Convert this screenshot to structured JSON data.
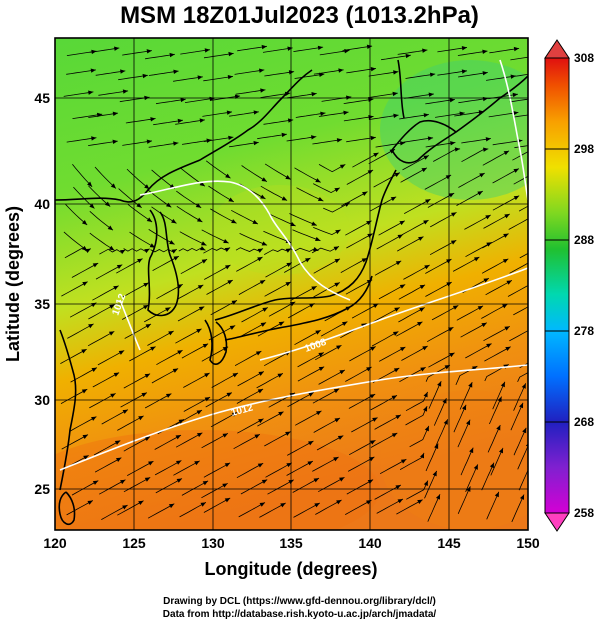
{
  "title": "MSM 18Z01Jul2023 (1013.2hPa)",
  "axes": {
    "xlabel": "Longitude (degrees)",
    "ylabel": "Latitude  (degrees)",
    "xlim": [
      120,
      150
    ],
    "ylim": [
      22.5,
      48
    ],
    "xticks": [
      "120",
      "125",
      "130",
      "135",
      "140",
      "145",
      "150"
    ],
    "yticks": [
      "25",
      "30",
      "35",
      "40",
      "45"
    ]
  },
  "colorbar": {
    "ticks": [
      "308",
      "298",
      "288",
      "278",
      "268",
      "258"
    ],
    "min": 258,
    "max": 308,
    "colors": [
      "#d400d4",
      "#2020c0",
      "#00a0ff",
      "#00d8b0",
      "#20c020",
      "#a8e020",
      "#f0e000",
      "#f8a000",
      "#f05000",
      "#e01010"
    ]
  },
  "contours": {
    "labels": [
      "1012",
      "1008",
      "1012"
    ]
  },
  "credits": {
    "line1": "Drawing by DCL (https://www.gfd-dennou.org/library/dcl/)",
    "line2": "Data from http://database.rish.kyoto-u.ac.jp/arch/jmadata/"
  }
}
